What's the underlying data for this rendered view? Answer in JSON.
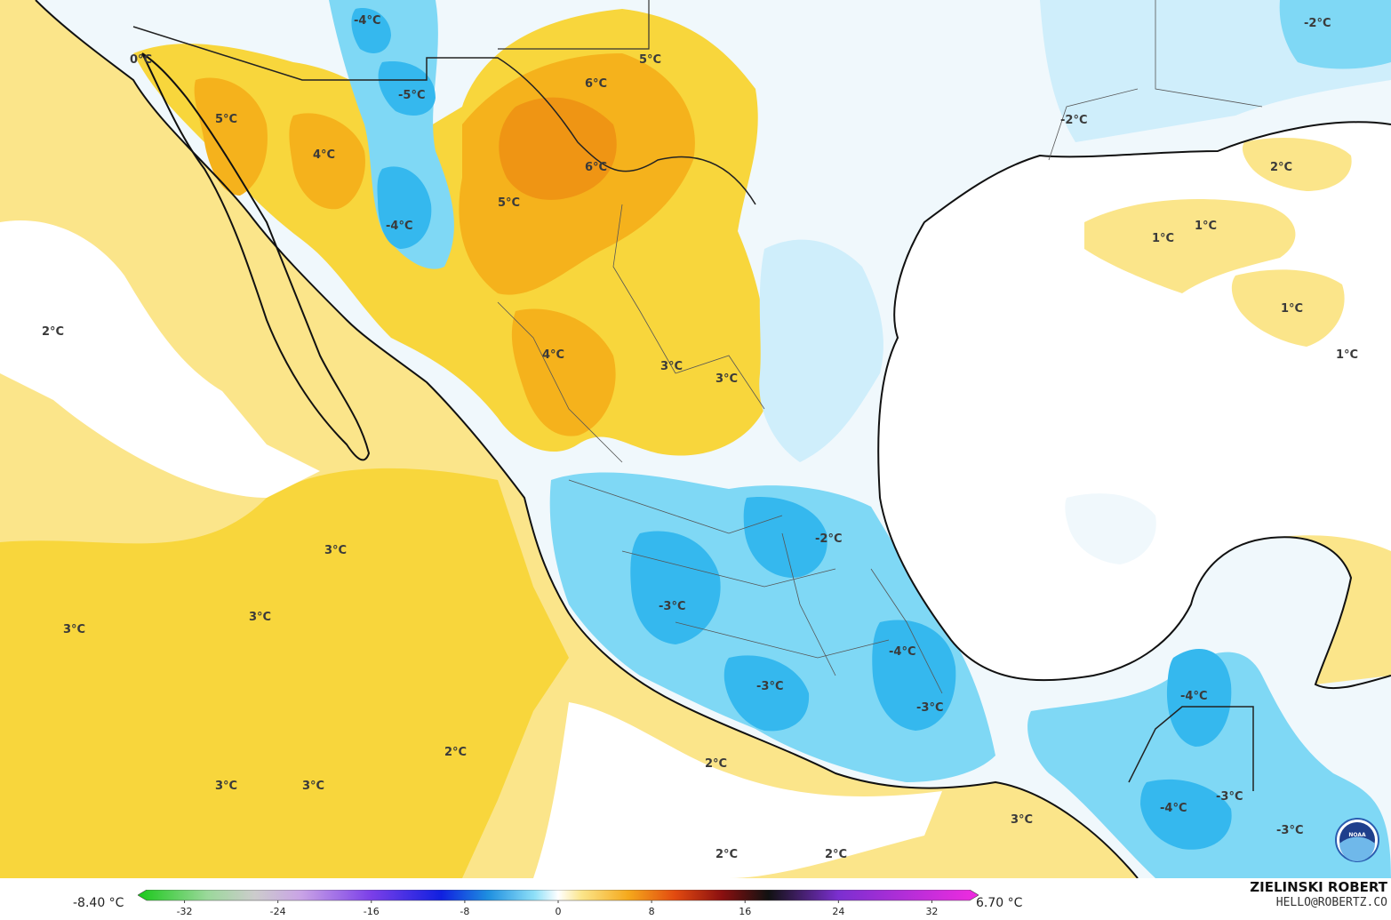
{
  "map": {
    "colors": {
      "ocean_warm": "#fbe58a",
      "yellow": "#f8d63c",
      "orange": "#f5b21c",
      "dark_orange": "#ef9514",
      "white": "#ffffff",
      "light_blue": "#cfeefb",
      "cyan": "#7fd8f5",
      "blue": "#35b8ee",
      "deep_blue": "#1e8fe0",
      "coast": "#111111",
      "border": "#555555"
    },
    "labels": [
      "-4°C",
      "0°C",
      "-5°C",
      "5°C",
      "4°C",
      "-4°C",
      "5°C",
      "6°C",
      "6°C",
      "5°C",
      "2°C",
      "4°C",
      "3°C",
      "3°C",
      "-2°C",
      "-2°C",
      "2°C",
      "1°C",
      "1°C",
      "1°C",
      "1°C",
      "3°C",
      "3°C",
      "3°C",
      "-3°C",
      "-2°C",
      "-4°C",
      "-3°C",
      "-3°C",
      "2°C",
      "3°C",
      "3°C",
      "2°C",
      "2°C",
      "2°C",
      "3°C",
      "-4°C",
      "-4°C",
      "-3°C",
      "-3°C"
    ],
    "logo": "NOAA"
  },
  "legend": {
    "min_label": "-8.40 °C",
    "max_label": "6.70 °C",
    "ticks": [
      "-32",
      "-24",
      "-16",
      "-8",
      "0",
      "8",
      "16",
      "24",
      "32"
    ],
    "range": [
      -36,
      36
    ],
    "stops": [
      {
        "v": -36,
        "c": "#19c819"
      },
      {
        "v": -30,
        "c": "#9bd89b"
      },
      {
        "v": -26,
        "c": "#cccccc"
      },
      {
        "v": -22,
        "c": "#c9a3e6"
      },
      {
        "v": -16,
        "c": "#7b3fe8"
      },
      {
        "v": -10,
        "c": "#1020e0"
      },
      {
        "v": -6,
        "c": "#1e8fe0"
      },
      {
        "v": -2,
        "c": "#8fe0f8"
      },
      {
        "v": 0,
        "c": "#ffffff"
      },
      {
        "v": 2,
        "c": "#fbe58a"
      },
      {
        "v": 6,
        "c": "#f5a91c"
      },
      {
        "v": 10,
        "c": "#e24a10"
      },
      {
        "v": 14,
        "c": "#8b1010"
      },
      {
        "v": 18,
        "c": "#111111"
      },
      {
        "v": 24,
        "c": "#7b2fd0"
      },
      {
        "v": 36,
        "c": "#f02ce0"
      }
    ]
  },
  "credit": {
    "author": "ZIELINSKI ROBERT",
    "email": "HELLO@ROBERTZ.CO"
  }
}
